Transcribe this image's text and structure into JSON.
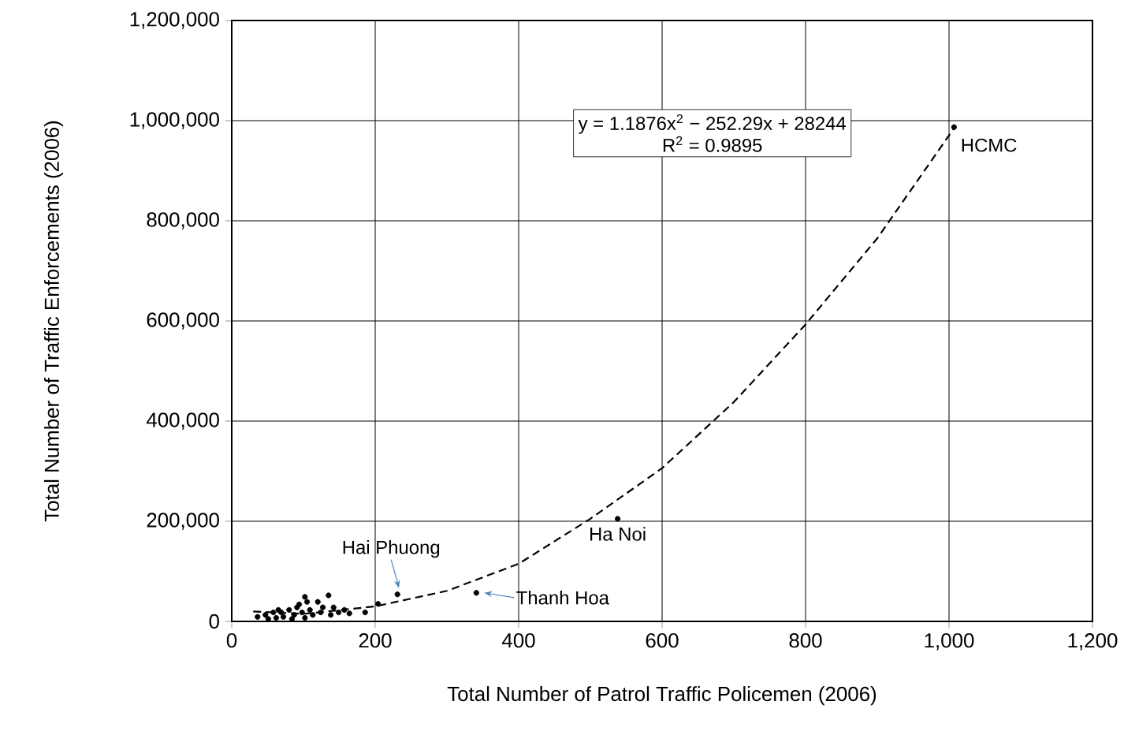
{
  "chart_data": {
    "type": "scatter",
    "xlabel": "Total Number of Patrol Traffic Policemen (2006)",
    "ylabel": "Total Number of Traffic Enforcements  (2006)",
    "xlim": [
      0,
      1200
    ],
    "ylim": [
      0,
      1200000
    ],
    "xticks": [
      0,
      200,
      400,
      600,
      800,
      {
        "value": 1000,
        "label": "1,000"
      },
      {
        "value": 1200,
        "label": "1,200"
      }
    ],
    "yticks": [
      0,
      {
        "value": 200000,
        "label": "200,000"
      },
      {
        "value": 400000,
        "label": "400,000"
      },
      {
        "value": 600000,
        "label": "600,000"
      },
      {
        "value": 800000,
        "label": "800,000"
      },
      {
        "value": 1000000,
        "label": "1,000,000"
      },
      {
        "value": 1200000,
        "label": "1,200,000"
      }
    ],
    "grid": true,
    "series": [
      {
        "color": "#000000",
        "marker": "circle",
        "x": [
          1007,
          538,
          231,
          341,
          204,
          102,
          135,
          120,
          157,
          164,
          149,
          142,
          127,
          91,
          80,
          69,
          58,
          47,
          36,
          72,
          87,
          98,
          109,
          113,
          62,
          51,
          84,
          102,
          124,
          138,
          186,
          65,
          94,
          105
        ],
        "values": [
          987000,
          205000,
          54000,
          57000,
          35000,
          49000,
          52000,
          39000,
          23000,
          16000,
          18000,
          28000,
          28000,
          28000,
          23000,
          18000,
          18000,
          13000,
          9000,
          9000,
          13000,
          18000,
          23000,
          13000,
          7000,
          5000,
          5000,
          7000,
          18000,
          13000,
          18000,
          23000,
          34000,
          39000
        ]
      },
      {
        "type": "line",
        "color": "#000000",
        "line_style": "dashed",
        "marker": "none",
        "x": [
          30,
          100,
          200,
          300,
          400,
          500,
          600,
          700,
          800,
          900,
          1007
        ],
        "values": [
          20000,
          15000,
          30000,
          61000,
          115000,
          205000,
          306000,
          438000,
          593000,
          765000,
          985000
        ]
      }
    ],
    "annotations": [
      "y = 1.1876x$^{2}$ − 252.29x + 28244",
      "R$^{2}$ = 0.9895",
      {
        "text": "HCMC",
        "x": 1007,
        "y": 987000
      },
      {
        "text": "Ha Noi",
        "x": 538,
        "y": 205000
      },
      {
        "text": "Hai Phuong",
        "x": 231,
        "y": 54000
      },
      {
        "text": "Thanh Hoa",
        "x": 341,
        "y": 57000
      }
    ]
  }
}
